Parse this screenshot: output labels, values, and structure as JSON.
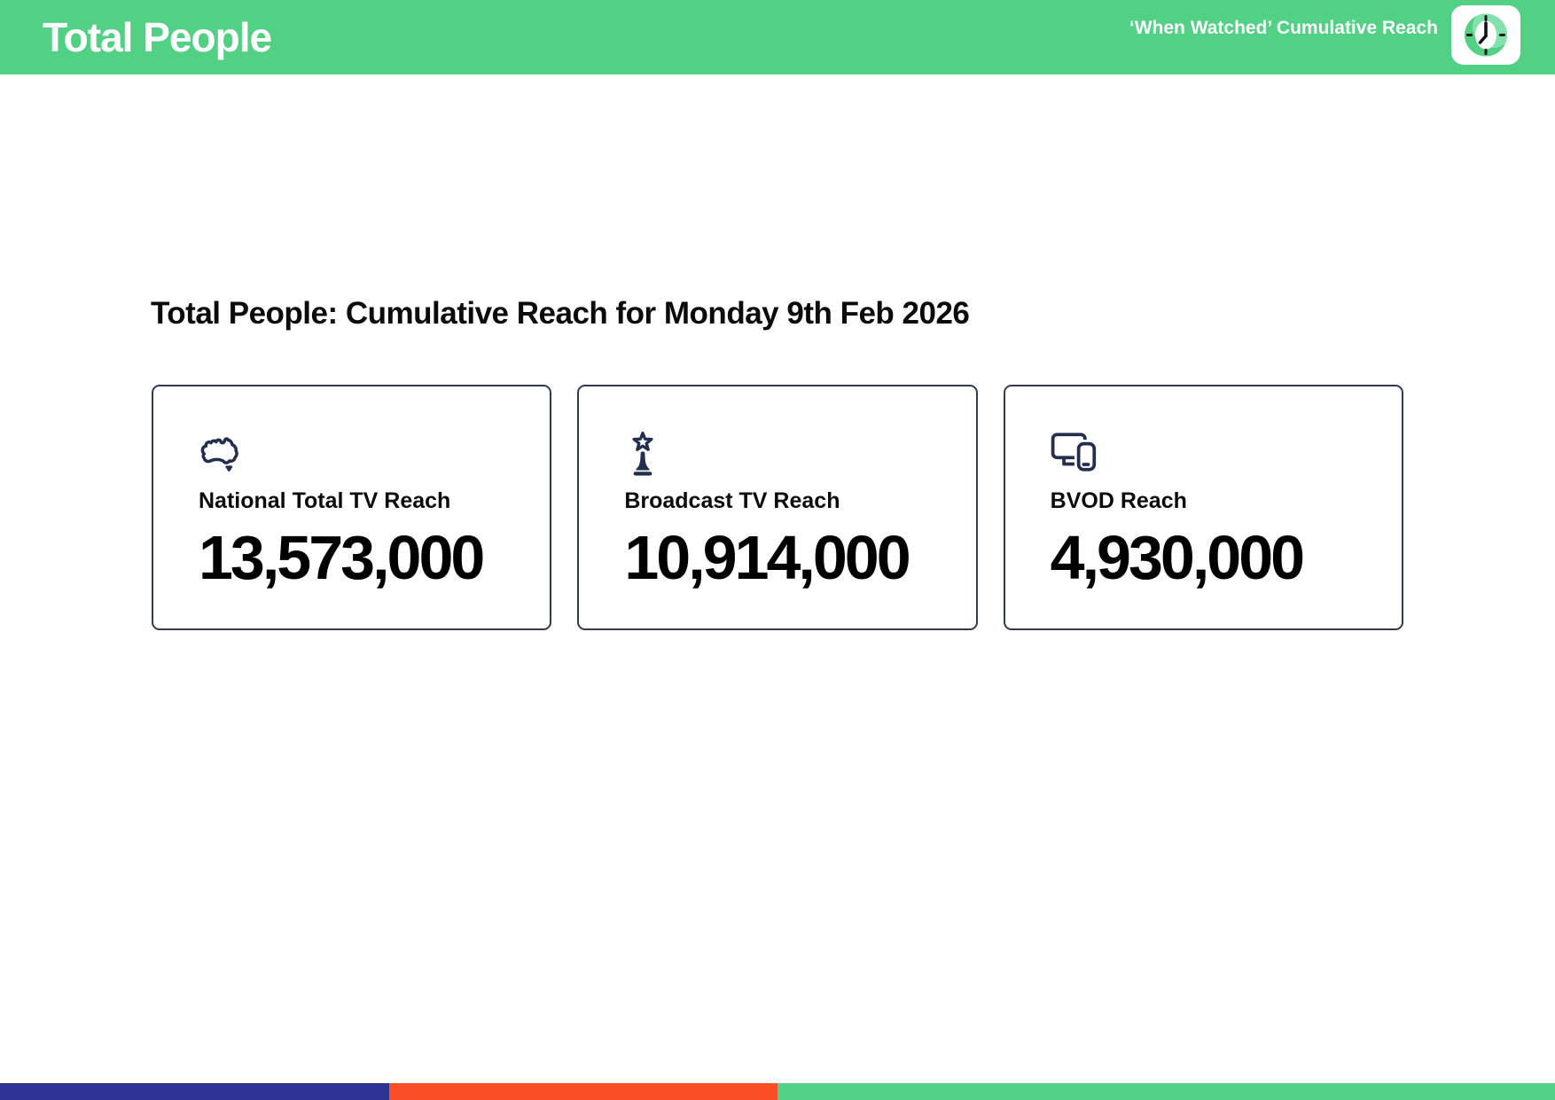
{
  "header": {
    "title": "Total People",
    "subtitle": "‘When Watched’ Cumulative Reach",
    "logo_icon": "clock-logo-icon"
  },
  "main": {
    "heading": "Total People: Cumulative Reach for Monday 9th Feb 2026",
    "cards": [
      {
        "icon": "australia-map-icon",
        "label": "National Total TV Reach",
        "value": "13,573,000"
      },
      {
        "icon": "broadcast-tower-icon",
        "label": "Broadcast TV Reach",
        "value": "10,914,000"
      },
      {
        "icon": "tv-and-phone-devices-icon",
        "label": "BVOD Reach",
        "value": "4,930,000"
      }
    ]
  },
  "footer": {
    "segments": [
      {
        "name": "blue-segment",
        "color": "#2E3391",
        "width_pct": 25
      },
      {
        "name": "orange-segment",
        "color": "#FA4F26",
        "width_pct": 25
      },
      {
        "name": "green-segment",
        "color": "#53D189",
        "width_pct": 50
      }
    ]
  },
  "colors": {
    "green": "#52D185",
    "clock-light-green": "#83E2AB",
    "navy": "#232E4E",
    "card-border": "#2E3B52",
    "text": "#0B0B0B"
  }
}
